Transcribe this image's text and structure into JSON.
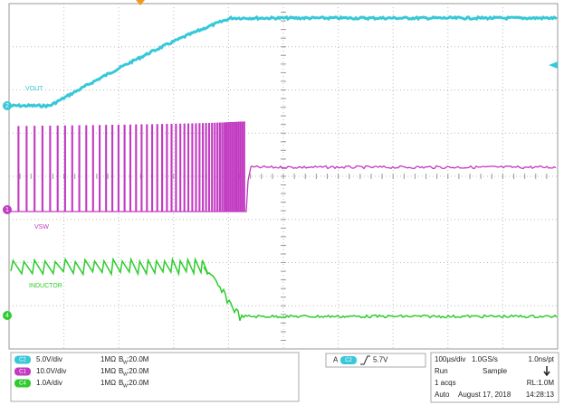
{
  "traces": {
    "vout": "VOUT",
    "vsw": "VSW",
    "inductor": "INDUCTOR"
  },
  "markers": {
    "ch2": "2",
    "ch1": "1",
    "ch4": "4"
  },
  "channels": [
    {
      "badge": "C2",
      "scale": "5.0V/div",
      "impedance": "1MΩ",
      "bw_prefix": "B",
      "bw_sub": "W",
      "bw": ":20.0M"
    },
    {
      "badge": "C1",
      "scale": "10.0V/div",
      "impedance": "1MΩ",
      "bw_prefix": "B",
      "bw_sub": "W",
      "bw": ":20.0M"
    },
    {
      "badge": "C4",
      "scale": "1.0A/div",
      "impedance": "1MΩ",
      "bw_prefix": "B",
      "bw_sub": "W",
      "bw": ":20.0M"
    }
  ],
  "trigger": {
    "mode": "A",
    "source": "C2",
    "level": "5.7V"
  },
  "acquisition": {
    "timebase": "100µs/div",
    "sample_rate": "1.0GS/s",
    "resolution": "1.0ns/pt",
    "state": "Run",
    "mode": "Sample",
    "acqs": "1 acqs",
    "record_length": "RL:1.0M",
    "trigger_mode": "Auto",
    "date": "August 17, 2018",
    "time": "14:28:13"
  }
}
